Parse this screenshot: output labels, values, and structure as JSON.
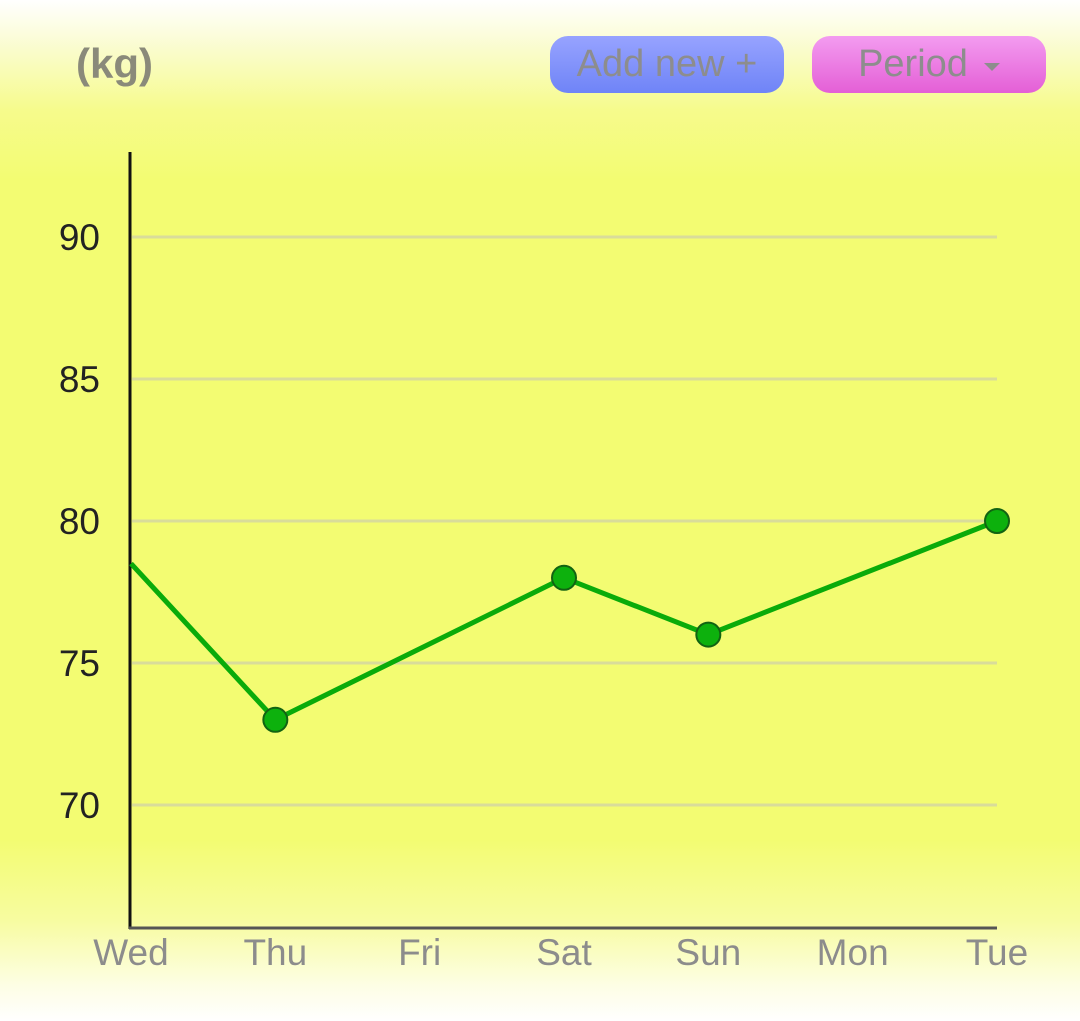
{
  "header": {
    "unit_label": "(kg)",
    "add_button_label": "Add new +",
    "period_button_label": "Period"
  },
  "icons": {
    "period_dropdown": "caret-down-icon"
  },
  "colors": {
    "background": "#f3fc72",
    "add_button": "#7f90fb",
    "period_button": "#ec7ee4",
    "line": "#0aab0a",
    "point_fill": "#0db10d",
    "point_stroke": "#126312",
    "gridline": "#d9dc9a"
  },
  "chart_data": {
    "type": "line",
    "categories": [
      "Wed",
      "Thu",
      "Fri",
      "Sat",
      "Sun",
      "Mon",
      "Tue"
    ],
    "points": [
      {
        "x": "Wed",
        "y": 78.5
      },
      {
        "x": "Thu",
        "y": 73
      },
      {
        "x": "Sat",
        "y": 78
      },
      {
        "x": "Sun",
        "y": 76
      },
      {
        "x": "Tue",
        "y": 80
      }
    ],
    "yticks": [
      70,
      75,
      80,
      85,
      90
    ],
    "ylim": [
      66,
      93
    ],
    "ylabel": "(kg)",
    "grid": true
  }
}
